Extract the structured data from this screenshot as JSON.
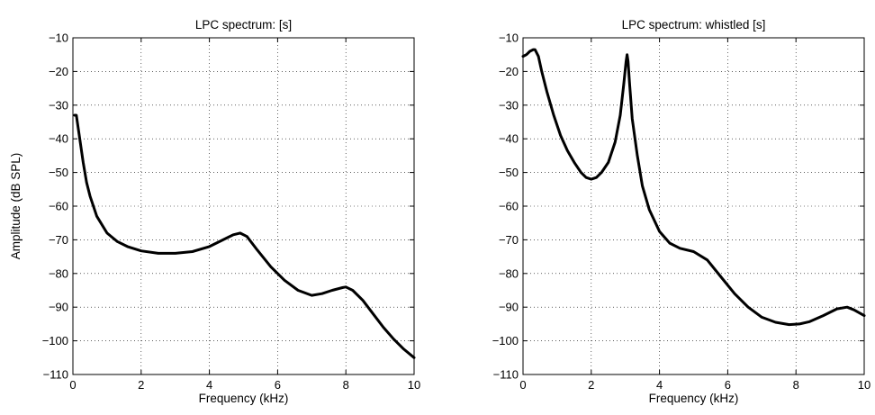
{
  "chart_data": [
    {
      "type": "line",
      "title": "LPC spectrum: [s]",
      "xlabel": "Frequency (kHz)",
      "ylabel": "Amplitude (dB SPL)",
      "xlim": [
        0,
        10
      ],
      "ylim": [
        -110,
        -10
      ],
      "xticks": [
        0,
        2,
        4,
        6,
        8,
        10
      ],
      "yticks": [
        -10,
        -20,
        -30,
        -40,
        -50,
        -60,
        -70,
        -80,
        -90,
        -100,
        -110
      ],
      "grid": true,
      "series": [
        {
          "x": [
            0.05,
            0.1,
            0.2,
            0.3,
            0.4,
            0.5,
            0.7,
            1.0,
            1.3,
            1.6,
            2.0,
            2.5,
            3.0,
            3.5,
            4.0,
            4.4,
            4.7,
            4.9,
            5.1,
            5.4,
            5.8,
            6.2,
            6.6,
            7.0,
            7.3,
            7.6,
            7.9,
            8.0,
            8.2,
            8.5,
            8.8,
            9.1,
            9.4,
            9.7,
            10.0
          ],
          "y": [
            -33,
            -33,
            -40,
            -47,
            -53,
            -57,
            -63,
            -68,
            -70.5,
            -72,
            -73.3,
            -74,
            -74,
            -73.5,
            -72,
            -70,
            -68.5,
            -68,
            -69,
            -73,
            -78,
            -82,
            -85,
            -86.5,
            -86,
            -85,
            -84.2,
            -84,
            -85,
            -88,
            -92,
            -96,
            -99.5,
            -102.5,
            -105
          ]
        }
      ]
    },
    {
      "type": "line",
      "title": "LPC spectrum: whistled [s]",
      "xlabel": "Frequency (kHz)",
      "ylabel": "",
      "xlim": [
        0,
        10
      ],
      "ylim": [
        -110,
        -10
      ],
      "xticks": [
        0,
        2,
        4,
        6,
        8,
        10
      ],
      "yticks": [
        -10,
        -20,
        -30,
        -40,
        -50,
        -60,
        -70,
        -80,
        -90,
        -100,
        -110
      ],
      "grid": true,
      "series": [
        {
          "x": [
            0.0,
            0.1,
            0.2,
            0.3,
            0.35,
            0.45,
            0.55,
            0.7,
            0.9,
            1.1,
            1.3,
            1.5,
            1.7,
            1.85,
            2.0,
            2.15,
            2.3,
            2.5,
            2.7,
            2.85,
            2.95,
            3.02,
            3.05,
            3.08,
            3.12,
            3.2,
            3.35,
            3.5,
            3.7,
            4.0,
            4.3,
            4.6,
            5.0,
            5.4,
            5.8,
            6.2,
            6.6,
            7.0,
            7.4,
            7.8,
            8.1,
            8.4,
            8.8,
            9.2,
            9.5,
            9.7,
            10.0
          ],
          "y": [
            -15.5,
            -15,
            -14,
            -13.5,
            -13.5,
            -15.5,
            -20,
            -26,
            -33,
            -39,
            -43.5,
            -47,
            -50,
            -51.5,
            -52,
            -51.5,
            -50,
            -47,
            -41,
            -33,
            -24,
            -17,
            -15,
            -17,
            -23,
            -34,
            -45,
            -54,
            -61,
            -67.5,
            -71,
            -72.5,
            -73.5,
            -76,
            -81,
            -86,
            -90,
            -93,
            -94.5,
            -95.2,
            -95,
            -94.3,
            -92.5,
            -90.5,
            -90,
            -90.8,
            -92.5
          ]
        }
      ]
    }
  ]
}
